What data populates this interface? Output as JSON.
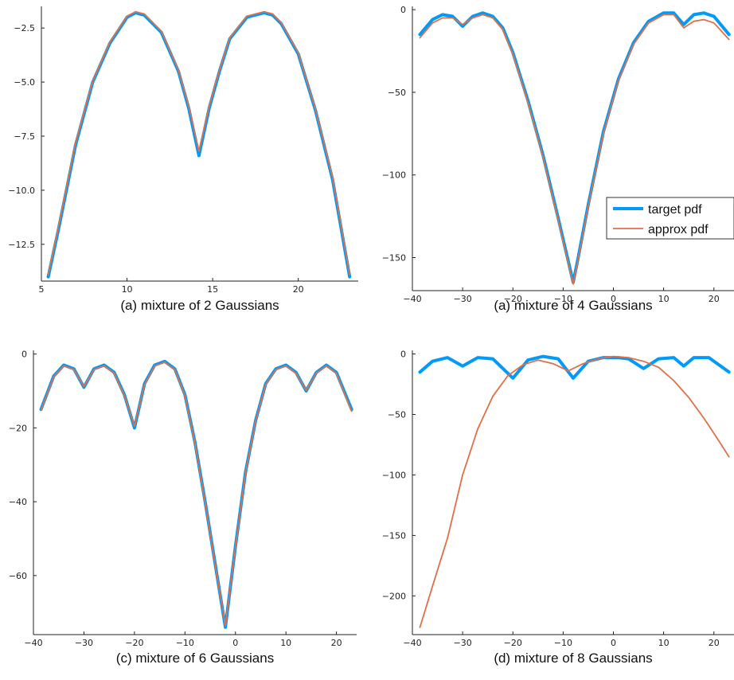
{
  "colors": {
    "target": "#009AFA",
    "approx": "#E26F46",
    "axis": "#222222"
  },
  "legend": {
    "placement": "right",
    "target_label": "target pdf",
    "approx_label": "approx pdf"
  },
  "chart_data": [
    {
      "type": "line",
      "caption": "(a) mixture of 2 Gaussians",
      "xlim": [
        5,
        23.5
      ],
      "ylim": [
        -14.2,
        -1.5
      ],
      "xticks": [
        5,
        10,
        15,
        20
      ],
      "yticks": [
        -12.5,
        -10.0,
        -7.5,
        -5.0,
        -2.5
      ],
      "xtick_labels": [
        "5",
        "10",
        "15",
        "20"
      ],
      "ytick_labels": [
        "−12.5",
        "−10.0",
        "−7.5",
        "−5.0",
        "−2.5"
      ],
      "series": [
        {
          "name": "target pdf",
          "x": [
            5.4,
            6,
            7,
            8,
            9,
            10,
            10.5,
            11,
            12,
            13,
            13.6,
            14.2,
            14.8,
            15.4,
            16,
            17,
            18,
            18.5,
            19,
            20,
            21,
            22,
            23
          ],
          "y": [
            -14.0,
            -11.8,
            -7.9,
            -5.0,
            -3.2,
            -2.0,
            -1.8,
            -1.9,
            -2.7,
            -4.5,
            -6.2,
            -8.4,
            -6.2,
            -4.5,
            -3.0,
            -2.0,
            -1.8,
            -1.9,
            -2.3,
            -3.7,
            -6.3,
            -9.5,
            -14.0
          ]
        },
        {
          "name": "approx pdf",
          "x": [
            5.4,
            6,
            7,
            8,
            9,
            10,
            10.5,
            11,
            12,
            13,
            13.6,
            14.2,
            14.8,
            15.4,
            16,
            17,
            18,
            18.5,
            19,
            20,
            21,
            22,
            23
          ],
          "y": [
            -13.9,
            -11.7,
            -7.8,
            -4.95,
            -3.15,
            -1.95,
            -1.75,
            -1.85,
            -2.65,
            -4.45,
            -6.1,
            -8.2,
            -6.1,
            -4.45,
            -2.95,
            -1.95,
            -1.75,
            -1.85,
            -2.25,
            -3.65,
            -6.25,
            -9.4,
            -13.9
          ]
        }
      ]
    },
    {
      "type": "line",
      "caption": "(a) mixture of 4 Gaussians",
      "xlim": [
        -40,
        24
      ],
      "ylim": [
        -170,
        2
      ],
      "xticks": [
        -40,
        -30,
        -20,
        -10,
        0,
        10,
        20
      ],
      "yticks": [
        -150,
        -100,
        -50,
        0
      ],
      "xtick_labels": [
        "−40",
        "−30",
        "−20",
        "−10",
        "0",
        "10",
        "20"
      ],
      "ytick_labels": [
        "−150",
        "−100",
        "−50",
        "0"
      ],
      "legend": true,
      "series": [
        {
          "name": "target pdf",
          "x": [
            -38.5,
            -36,
            -34,
            -32,
            -30,
            -28,
            -26,
            -24,
            -22,
            -20,
            -17,
            -14,
            -11,
            -9,
            -8,
            -7,
            -5,
            -2,
            1,
            4,
            7,
            10,
            12,
            14,
            16,
            18,
            20,
            23
          ],
          "y": [
            -15,
            -6,
            -3,
            -4,
            -10,
            -4,
            -2,
            -4,
            -11,
            -26,
            -55,
            -88,
            -126,
            -152,
            -165,
            -150,
            -118,
            -74,
            -42,
            -20,
            -7,
            -2,
            -2,
            -9,
            -3,
            -2,
            -4,
            -15
          ]
        },
        {
          "name": "approx pdf",
          "x": [
            -38.5,
            -36,
            -34,
            -32,
            -30,
            -28,
            -26,
            -24,
            -22,
            -20,
            -17,
            -14,
            -11,
            -9,
            -8,
            -7,
            -5,
            -2,
            1,
            4,
            7,
            10,
            12,
            14,
            16,
            18,
            20,
            23
          ],
          "y": [
            -17,
            -8,
            -5,
            -5,
            -9,
            -5,
            -3,
            -5,
            -12,
            -27,
            -56,
            -89,
            -127,
            -153,
            -166,
            -151,
            -119,
            -75,
            -43,
            -21,
            -8,
            -3,
            -3,
            -11,
            -7,
            -6,
            -8,
            -18
          ]
        }
      ]
    },
    {
      "type": "line",
      "caption": "(c) mixture of 6 Gaussians",
      "xlim": [
        -40,
        24
      ],
      "ylim": [
        -76,
        1
      ],
      "xticks": [
        -40,
        -30,
        -20,
        -10,
        0,
        10,
        20
      ],
      "yticks": [
        -60,
        -40,
        -20,
        0
      ],
      "xtick_labels": [
        "−40",
        "−30",
        "−20",
        "−10",
        "0",
        "10",
        "20"
      ],
      "ytick_labels": [
        "−60",
        "−40",
        "−20",
        "0"
      ],
      "series": [
        {
          "name": "target pdf",
          "x": [
            -38.5,
            -36,
            -34,
            -32,
            -30,
            -28,
            -26,
            -24,
            -22,
            -20,
            -18,
            -16,
            -14,
            -12,
            -10,
            -8,
            -6,
            -4,
            -2,
            0,
            2,
            4,
            6,
            8,
            10,
            12,
            14,
            16,
            18,
            20,
            23
          ],
          "y": [
            -15,
            -6,
            -3,
            -4,
            -9,
            -4,
            -3,
            -5,
            -11,
            -20,
            -8,
            -3,
            -2,
            -4,
            -11,
            -24,
            -40,
            -57,
            -74,
            -52,
            -32,
            -18,
            -8,
            -4,
            -3,
            -5,
            -10,
            -5,
            -3,
            -5,
            -15
          ]
        },
        {
          "name": "approx pdf",
          "x": [
            -38.5,
            -36,
            -34,
            -32,
            -30,
            -28,
            -26,
            -24,
            -22,
            -20,
            -18,
            -16,
            -14,
            -12,
            -10,
            -8,
            -6,
            -4,
            -2,
            0,
            2,
            4,
            6,
            8,
            10,
            12,
            14,
            16,
            18,
            20,
            23
          ],
          "y": [
            -15.2,
            -6.2,
            -3.2,
            -4.2,
            -8.8,
            -4.2,
            -3.2,
            -5.2,
            -11.2,
            -19.6,
            -8.2,
            -3.2,
            -2.2,
            -4.2,
            -11.2,
            -24.2,
            -40.2,
            -57.2,
            -73.6,
            -52.2,
            -32.2,
            -18.2,
            -8.2,
            -4.2,
            -3.2,
            -5.2,
            -9.8,
            -5.2,
            -3.2,
            -5.2,
            -15.5
          ]
        }
      ]
    },
    {
      "type": "line",
      "caption": "(d) mixture of 8 Gaussians",
      "xlim": [
        -40,
        24
      ],
      "ylim": [
        -232,
        3
      ],
      "xticks": [
        -40,
        -30,
        -20,
        -10,
        0,
        10,
        20
      ],
      "yticks": [
        -200,
        -150,
        -100,
        -50,
        0
      ],
      "xtick_labels": [
        "−40",
        "−30",
        "−20",
        "−10",
        "0",
        "10",
        "20"
      ],
      "ytick_labels": [
        "−200",
        "−150",
        "−100",
        "−50",
        "0"
      ],
      "series": [
        {
          "name": "target pdf",
          "x": [
            -38.5,
            -36,
            -33,
            -30,
            -27,
            -24,
            -20,
            -17,
            -14,
            -11,
            -8,
            -5,
            -2,
            1,
            3,
            6,
            9,
            12,
            14,
            16,
            19,
            23
          ],
          "y": [
            -15,
            -6,
            -3,
            -10,
            -3,
            -4,
            -20,
            -5,
            -2,
            -4,
            -20,
            -6,
            -3,
            -3,
            -4,
            -12,
            -4,
            -3,
            -10,
            -3,
            -3,
            -15
          ]
        },
        {
          "name": "approx pdf",
          "x": [
            -38.5,
            -36,
            -33,
            -30,
            -27,
            -24,
            -21,
            -18,
            -15,
            -12,
            -9,
            -6,
            -3,
            0,
            3,
            6,
            9,
            12,
            15,
            18,
            21,
            23
          ],
          "y": [
            -226,
            -192,
            -152,
            -100,
            -62,
            -35,
            -18,
            -9,
            -5,
            -8,
            -14,
            -8,
            -4,
            -2,
            -3,
            -6,
            -11,
            -22,
            -36,
            -53,
            -72,
            -85
          ]
        }
      ]
    }
  ]
}
